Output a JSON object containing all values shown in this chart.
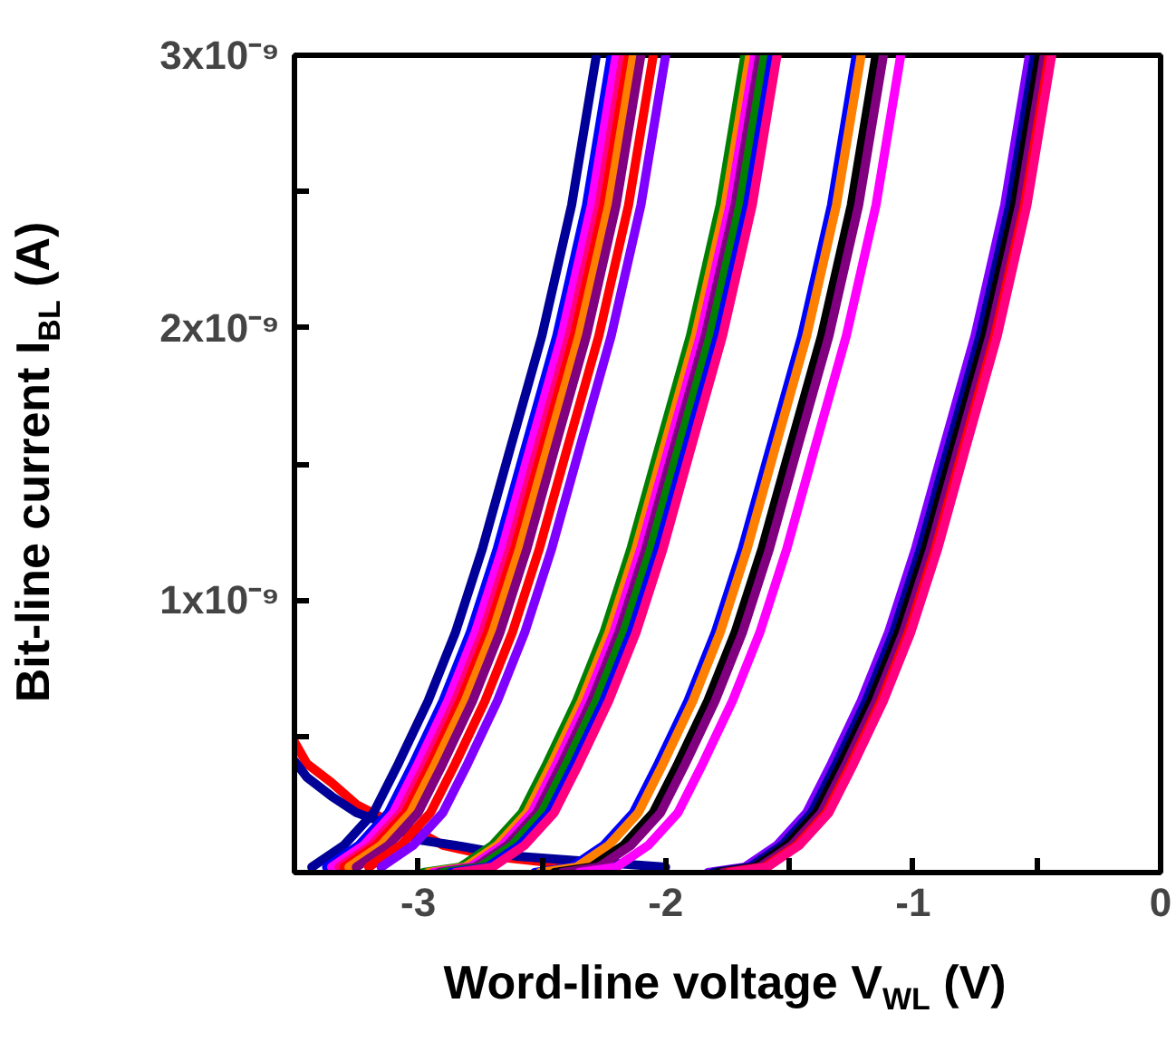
{
  "chart_data": {
    "type": "line",
    "xlabel": "Word-line voltage V$_{WL}$ (V)",
    "ylabel": "Bit-line current I$_{BL}$ (A)",
    "xlim": [
      -3.5,
      0
    ],
    "ylim": [
      0,
      3e-09
    ],
    "xticks": [
      -3,
      {
        "value": -2.5,
        "label": null
      },
      -2,
      {
        "value": -1.5,
        "label": null
      },
      -1,
      {
        "value": -0.5,
        "label": null
      },
      0
    ],
    "yticks": [
      {
        "value": 5e-10,
        "label": null
      },
      {
        "value": 1e-09,
        "label": "1x10⁻⁹"
      },
      {
        "value": 1.5e-09,
        "label": null
      },
      {
        "value": 2e-09,
        "label": "2x10⁻⁹"
      },
      {
        "value": 2.5e-09,
        "label": null
      },
      {
        "value": 3e-09,
        "label": "3x10⁻⁹"
      }
    ],
    "grid": false,
    "marker": "none",
    "line_style": "solid",
    "series": [
      {
        "color": "#ff0000",
        "x": [
          -3.5,
          -3.45,
          -3.35,
          -3.25,
          -3.1,
          -3.0,
          -2.9,
          -2.7,
          -2.5,
          -2.3
        ],
        "values": [
          4.8e-10,
          4e-10,
          3.3e-10,
          2.5e-10,
          1.8e-10,
          1.5e-10,
          1e-10,
          6e-11,
          4e-11,
          2e-11
        ]
      },
      {
        "color": "#000099",
        "x": [
          -3.5,
          -3.45,
          -3.35,
          -3.25,
          -3.1,
          -3.0,
          -2.85,
          -2.6,
          -2.3,
          -2.0
        ],
        "values": [
          4.1e-10,
          3.5e-10,
          2.8e-10,
          2.2e-10,
          1.7e-10,
          1.2e-10,
          1e-10,
          6e-11,
          4e-11,
          2e-11
        ]
      },
      {
        "color": "#000099",
        "x": [
          -3.43,
          -3.3,
          -3.18,
          -3.08,
          -2.96,
          -2.85,
          -2.74,
          -2.63,
          -2.5,
          -2.38,
          -2.28
        ],
        "values": [
          2e-11,
          1e-10,
          2.2e-10,
          4e-10,
          6.3e-10,
          8.8e-10,
          1.19e-09,
          1.55e-09,
          1.97e-09,
          2.45e-09,
          3e-09
        ]
      },
      {
        "color": "#0000ff",
        "x": [
          -3.37,
          -3.24,
          -3.12,
          -3.02,
          -2.9,
          -2.79,
          -2.68,
          -2.57,
          -2.44,
          -2.32,
          -2.22
        ],
        "values": [
          2e-11,
          1e-10,
          2.2e-10,
          4e-10,
          6.3e-10,
          8.8e-10,
          1.19e-09,
          1.55e-09,
          1.97e-09,
          2.45e-09,
          3e-09
        ]
      },
      {
        "color": "#ff00ff",
        "x": [
          -3.35,
          -3.22,
          -3.1,
          -3.0,
          -2.88,
          -2.77,
          -2.66,
          -2.55,
          -2.42,
          -2.3,
          -2.2
        ],
        "values": [
          2e-11,
          1e-10,
          2.2e-10,
          4e-10,
          6.3e-10,
          8.8e-10,
          1.19e-09,
          1.55e-09,
          1.97e-09,
          2.45e-09,
          3e-09
        ]
      },
      {
        "color": "#ff0080",
        "x": [
          -3.32,
          -3.19,
          -3.07,
          -2.97,
          -2.85,
          -2.74,
          -2.63,
          -2.52,
          -2.39,
          -2.27,
          -2.17
        ],
        "values": [
          2e-11,
          1e-10,
          2.2e-10,
          4e-10,
          6.3e-10,
          8.8e-10,
          1.19e-09,
          1.55e-09,
          1.97e-09,
          2.45e-09,
          3e-09
        ]
      },
      {
        "color": "#ff0000",
        "x": [
          -3.3,
          -3.17,
          -3.05,
          -2.95,
          -2.83,
          -2.72,
          -2.61,
          -2.5,
          -2.37,
          -2.25,
          -2.15
        ],
        "values": [
          2e-11,
          1e-10,
          2.2e-10,
          4e-10,
          6.3e-10,
          8.8e-10,
          1.19e-09,
          1.55e-09,
          1.97e-09,
          2.45e-09,
          3e-09
        ]
      },
      {
        "color": "#ff8000",
        "x": [
          -3.28,
          -3.15,
          -3.03,
          -2.93,
          -2.81,
          -2.7,
          -2.59,
          -2.48,
          -2.35,
          -2.23,
          -2.13
        ],
        "values": [
          2e-11,
          1e-10,
          2.2e-10,
          4e-10,
          6.3e-10,
          8.8e-10,
          1.19e-09,
          1.55e-09,
          1.97e-09,
          2.45e-09,
          3e-09
        ]
      },
      {
        "color": "#800080",
        "x": [
          -3.25,
          -3.12,
          -3.0,
          -2.9,
          -2.78,
          -2.67,
          -2.56,
          -2.45,
          -2.32,
          -2.2,
          -2.1
        ],
        "values": [
          2e-11,
          1e-10,
          2.2e-10,
          4e-10,
          6.3e-10,
          8.8e-10,
          1.19e-09,
          1.55e-09,
          1.97e-09,
          2.45e-09,
          3e-09
        ]
      },
      {
        "color": "#ff0000",
        "x": [
          -3.2,
          -3.07,
          -2.95,
          -2.85,
          -2.73,
          -2.62,
          -2.51,
          -2.4,
          -2.27,
          -2.15,
          -2.05
        ],
        "values": [
          2e-11,
          1e-10,
          2.2e-10,
          4e-10,
          6.3e-10,
          8.8e-10,
          1.19e-09,
          1.55e-09,
          1.97e-09,
          2.45e-09,
          3e-09
        ]
      },
      {
        "color": "#8000ff",
        "x": [
          -3.15,
          -3.02,
          -2.9,
          -2.8,
          -2.68,
          -2.57,
          -2.46,
          -2.35,
          -2.22,
          -2.1,
          -2.0
        ],
        "values": [
          2e-11,
          1e-10,
          2.2e-10,
          4e-10,
          6.3e-10,
          8.8e-10,
          1.19e-09,
          1.55e-09,
          1.97e-09,
          2.45e-09,
          3e-09
        ]
      },
      {
        "color": "#008000",
        "x": [
          -2.98,
          -2.83,
          -2.7,
          -2.58,
          -2.48,
          -2.36,
          -2.25,
          -2.14,
          -2.03,
          -1.9,
          -1.78,
          -1.68
        ],
        "values": [
          0,
          2e-11,
          1e-10,
          2.2e-10,
          4e-10,
          6.3e-10,
          8.8e-10,
          1.19e-09,
          1.55e-09,
          1.97e-09,
          2.45e-09,
          3e-09
        ]
      },
      {
        "color": "#ff8000",
        "x": [
          -2.96,
          -2.81,
          -2.68,
          -2.56,
          -2.46,
          -2.34,
          -2.23,
          -2.12,
          -2.01,
          -1.88,
          -1.76,
          -1.66
        ],
        "values": [
          0,
          2e-11,
          1e-10,
          2.2e-10,
          4e-10,
          6.3e-10,
          8.8e-10,
          1.19e-09,
          1.55e-09,
          1.97e-09,
          2.45e-09,
          3e-09
        ]
      },
      {
        "color": "#ff00ff",
        "x": [
          -2.94,
          -2.79,
          -2.66,
          -2.54,
          -2.44,
          -2.32,
          -2.21,
          -2.1,
          -1.99,
          -1.86,
          -1.74,
          -1.64
        ],
        "values": [
          0,
          2e-11,
          1e-10,
          2.2e-10,
          4e-10,
          6.3e-10,
          8.8e-10,
          1.19e-09,
          1.55e-09,
          1.97e-09,
          2.45e-09,
          3e-09
        ]
      },
      {
        "color": "#800080",
        "x": [
          -2.92,
          -2.77,
          -2.64,
          -2.52,
          -2.42,
          -2.3,
          -2.19,
          -2.08,
          -1.97,
          -1.84,
          -1.72,
          -1.62
        ],
        "values": [
          0,
          2e-11,
          1e-10,
          2.2e-10,
          4e-10,
          6.3e-10,
          8.8e-10,
          1.19e-09,
          1.55e-09,
          1.97e-09,
          2.45e-09,
          3e-09
        ]
      },
      {
        "color": "#008000",
        "x": [
          -2.9,
          -2.75,
          -2.62,
          -2.5,
          -2.4,
          -2.28,
          -2.17,
          -2.06,
          -1.95,
          -1.82,
          -1.7,
          -1.6
        ],
        "values": [
          0,
          2e-11,
          1e-10,
          2.2e-10,
          4e-10,
          6.3e-10,
          8.8e-10,
          1.19e-09,
          1.55e-09,
          1.97e-09,
          2.45e-09,
          3e-09
        ]
      },
      {
        "color": "#0000ff",
        "x": [
          -2.87,
          -2.72,
          -2.59,
          -2.47,
          -2.37,
          -2.25,
          -2.14,
          -2.03,
          -1.92,
          -1.79,
          -1.67,
          -1.57
        ],
        "values": [
          0,
          2e-11,
          1e-10,
          2.2e-10,
          4e-10,
          6.3e-10,
          8.8e-10,
          1.19e-09,
          1.55e-09,
          1.97e-09,
          2.45e-09,
          3e-09
        ]
      },
      {
        "color": "#ff0080",
        "x": [
          -2.85,
          -2.7,
          -2.57,
          -2.45,
          -2.35,
          -2.23,
          -2.12,
          -2.01,
          -1.9,
          -1.77,
          -1.65,
          -1.55
        ],
        "values": [
          0,
          2e-11,
          1e-10,
          2.2e-10,
          4e-10,
          6.3e-10,
          8.8e-10,
          1.19e-09,
          1.55e-09,
          1.97e-09,
          2.45e-09,
          3e-09
        ]
      },
      {
        "color": "#0000ff",
        "x": [
          -2.53,
          -2.38,
          -2.25,
          -2.13,
          -2.03,
          -1.91,
          -1.8,
          -1.69,
          -1.58,
          -1.45,
          -1.33,
          -1.23
        ],
        "values": [
          0,
          2e-11,
          1e-10,
          2.2e-10,
          4e-10,
          6.3e-10,
          8.8e-10,
          1.19e-09,
          1.55e-09,
          1.97e-09,
          2.45e-09,
          3e-09
        ]
      },
      {
        "color": "#ff8000",
        "x": [
          -2.51,
          -2.36,
          -2.23,
          -2.11,
          -2.01,
          -1.89,
          -1.78,
          -1.67,
          -1.56,
          -1.43,
          -1.31,
          -1.21
        ],
        "values": [
          0,
          2e-11,
          1e-10,
          2.2e-10,
          4e-10,
          6.3e-10,
          8.8e-10,
          1.19e-09,
          1.55e-09,
          1.97e-09,
          2.45e-09,
          3e-09
        ]
      },
      {
        "color": "#000000",
        "x": [
          -2.45,
          -2.3,
          -2.17,
          -2.05,
          -1.95,
          -1.83,
          -1.72,
          -1.61,
          -1.5,
          -1.37,
          -1.25,
          -1.15
        ],
        "values": [
          0,
          2e-11,
          1e-10,
          2.2e-10,
          4e-10,
          6.3e-10,
          8.8e-10,
          1.19e-09,
          1.55e-09,
          1.97e-09,
          2.45e-09,
          3e-09
        ]
      },
      {
        "color": "#800080",
        "x": [
          -2.42,
          -2.27,
          -2.14,
          -2.02,
          -1.92,
          -1.8,
          -1.69,
          -1.58,
          -1.47,
          -1.34,
          -1.22,
          -1.12
        ],
        "values": [
          0,
          2e-11,
          1e-10,
          2.2e-10,
          4e-10,
          6.3e-10,
          8.8e-10,
          1.19e-09,
          1.55e-09,
          1.97e-09,
          2.45e-09,
          3e-09
        ]
      },
      {
        "color": "#ff00ff",
        "x": [
          -2.35,
          -2.2,
          -2.07,
          -1.95,
          -1.85,
          -1.73,
          -1.62,
          -1.51,
          -1.4,
          -1.27,
          -1.15,
          -1.05
        ],
        "values": [
          0,
          2e-11,
          1e-10,
          2.2e-10,
          4e-10,
          6.3e-10,
          8.8e-10,
          1.19e-09,
          1.55e-09,
          1.97e-09,
          2.45e-09,
          3e-09
        ]
      },
      {
        "color": "#8000ff",
        "x": [
          -1.83,
          -1.68,
          -1.55,
          -1.43,
          -1.33,
          -1.21,
          -1.1,
          -0.99,
          -0.88,
          -0.75,
          -0.63,
          -0.53
        ],
        "values": [
          0,
          2e-11,
          1e-10,
          2.2e-10,
          4e-10,
          6.3e-10,
          8.8e-10,
          1.19e-09,
          1.55e-09,
          1.97e-09,
          2.45e-09,
          3e-09
        ]
      },
      {
        "color": "#000099",
        "x": [
          -1.81,
          -1.66,
          -1.53,
          -1.41,
          -1.31,
          -1.19,
          -1.08,
          -0.97,
          -0.86,
          -0.73,
          -0.61,
          -0.51
        ],
        "values": [
          0,
          2e-11,
          1e-10,
          2.2e-10,
          4e-10,
          6.3e-10,
          8.8e-10,
          1.19e-09,
          1.55e-09,
          1.97e-09,
          2.45e-09,
          3e-09
        ]
      },
      {
        "color": "#000000",
        "x": [
          -1.79,
          -1.64,
          -1.51,
          -1.39,
          -1.29,
          -1.17,
          -1.06,
          -0.95,
          -0.84,
          -0.71,
          -0.59,
          -0.49
        ],
        "values": [
          0,
          2e-11,
          1e-10,
          2.2e-10,
          4e-10,
          6.3e-10,
          8.8e-10,
          1.19e-09,
          1.55e-09,
          1.97e-09,
          2.45e-09,
          3e-09
        ]
      },
      {
        "color": "#800080",
        "x": [
          -1.77,
          -1.62,
          -1.49,
          -1.37,
          -1.27,
          -1.15,
          -1.04,
          -0.93,
          -0.82,
          -0.69,
          -0.57,
          -0.47
        ],
        "values": [
          0,
          2e-11,
          1e-10,
          2.2e-10,
          4e-10,
          6.3e-10,
          8.8e-10,
          1.19e-09,
          1.55e-09,
          1.97e-09,
          2.45e-09,
          3e-09
        ]
      },
      {
        "color": "#ff0000",
        "x": [
          -1.75,
          -1.6,
          -1.47,
          -1.35,
          -1.25,
          -1.13,
          -1.02,
          -0.91,
          -0.8,
          -0.67,
          -0.55,
          -0.45
        ],
        "values": [
          0,
          2e-11,
          1e-10,
          2.2e-10,
          4e-10,
          6.3e-10,
          8.8e-10,
          1.19e-09,
          1.55e-09,
          1.97e-09,
          2.45e-09,
          3e-09
        ]
      },
      {
        "color": "#ff0080",
        "x": [
          -1.74,
          -1.59,
          -1.46,
          -1.34,
          -1.24,
          -1.12,
          -1.01,
          -0.9,
          -0.79,
          -0.66,
          -0.54,
          -0.44
        ],
        "values": [
          0,
          2e-11,
          1e-10,
          2.2e-10,
          4e-10,
          6.3e-10,
          8.8e-10,
          1.19e-09,
          1.55e-09,
          1.97e-09,
          2.45e-09,
          3e-09
        ]
      }
    ]
  }
}
